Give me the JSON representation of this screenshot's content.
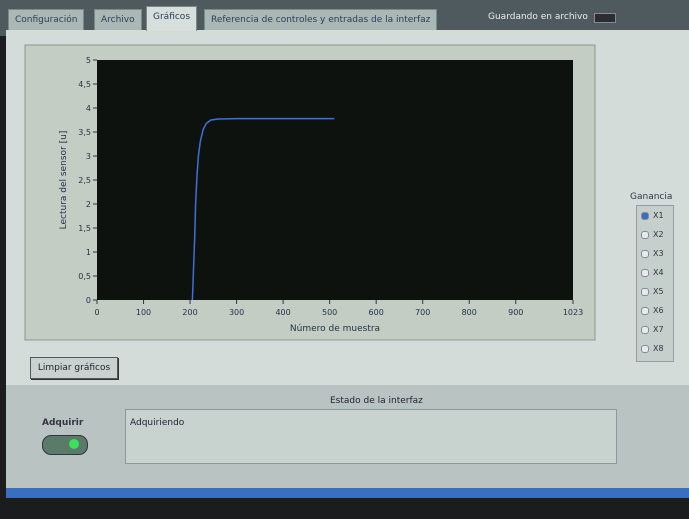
{
  "tabs": [
    "Configuración",
    "Archivo",
    "Gráficos",
    "Referencia de controles y entradas de la interfaz"
  ],
  "active_tab": "Gráficos",
  "status": "Guardando en archivo",
  "chart_data": {
    "type": "line",
    "xlabel": "Número de muestra",
    "ylabel": "Lectura del sensor [u]",
    "x": [
      205,
      208,
      210,
      212,
      215,
      218,
      222,
      228,
      235,
      245,
      260,
      300,
      400,
      510
    ],
    "values": [
      0,
      0.8,
      1.3,
      2.0,
      2.6,
      3.0,
      3.3,
      3.55,
      3.68,
      3.75,
      3.77,
      3.78,
      3.78,
      3.78
    ],
    "color": "#3f6fd8",
    "xlim": [
      0,
      1023
    ],
    "ylim": [
      0,
      5
    ],
    "xticks": [
      0,
      100,
      200,
      300,
      400,
      500,
      600,
      700,
      800,
      900,
      1023
    ],
    "yticks": [
      0,
      {
        "value": 0.5,
        "label": "0,5"
      },
      1,
      {
        "value": 1.5,
        "label": "1,5"
      },
      2,
      {
        "value": 2.5,
        "label": "2,5"
      },
      3,
      {
        "value": 3.5,
        "label": "3,5"
      },
      4,
      {
        "value": 4.5,
        "label": "4,5"
      },
      5
    ]
  },
  "clear_button": "Limpiar gráficos",
  "gain": {
    "title": "Ganancia",
    "options": [
      "X1",
      "X2",
      "X3",
      "X4",
      "X5",
      "X6",
      "X7",
      "X8"
    ],
    "selected": "X1"
  },
  "state": {
    "title": "Estado de la interfaz",
    "text": "Adquiriendo"
  },
  "acquire_button": "Adquirir"
}
